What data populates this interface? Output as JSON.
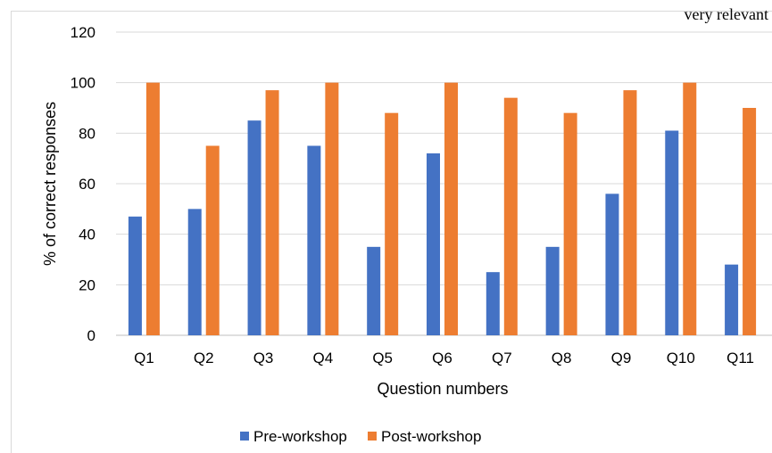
{
  "top_text": "very relevant",
  "chart_data": {
    "type": "bar",
    "title": "",
    "xlabel": "Question numbers",
    "ylabel": "% of correct responses",
    "ylim": [
      0,
      120
    ],
    "yticks": [
      0,
      20,
      40,
      60,
      80,
      100,
      120
    ],
    "categories": [
      "Q1",
      "Q2",
      "Q3",
      "Q4",
      "Q5",
      "Q6",
      "Q7",
      "Q8",
      "Q9",
      "Q10",
      "Q11"
    ],
    "grid": true,
    "legend": "bottom",
    "series": [
      {
        "name": "Pre-workshop",
        "color": "#4472c4",
        "values": [
          47,
          50,
          85,
          75,
          35,
          72,
          25,
          35,
          56,
          81,
          28
        ]
      },
      {
        "name": "Post-workshop",
        "color": "#ed7d31",
        "values": [
          100,
          75,
          97,
          100,
          88,
          100,
          94,
          88,
          97,
          100,
          90
        ]
      }
    ]
  }
}
